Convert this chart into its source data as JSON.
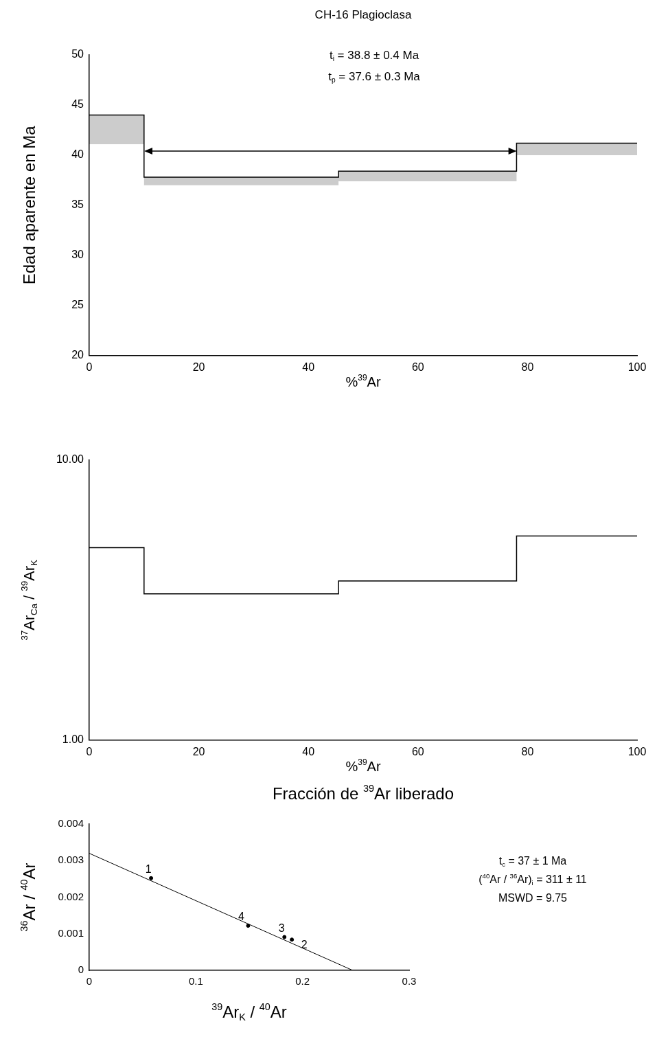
{
  "chart_data": [
    {
      "type": "step",
      "title": "CH-16 Plagioclasa",
      "xlabel": "%$^{39}$Ar",
      "ylabel": "Edad aparente en Ma",
      "xlim": [
        0,
        100
      ],
      "xticks": [
        0,
        20,
        40,
        60,
        80,
        100
      ],
      "ylim": [
        20,
        50
      ],
      "yticks": [
        20,
        25,
        30,
        35,
        40,
        45,
        50
      ],
      "grid": false,
      "legend": false,
      "annotations": [
        "t$_{i}$ = 38.8 ± 0.4 Ma",
        "t$_{p}$ = 37.6 ± 0.3 Ma"
      ],
      "series": [
        {
          "color": "#000000",
          "x": [
            0,
            10,
            45.5,
            78,
            100
          ],
          "values": [
            44.0,
            37.8,
            38.4,
            41.2,
            41.2
          ],
          "lower": [
            41.1,
            37.0,
            37.4,
            40.0,
            40.0
          ],
          "upper": [
            44.0,
            37.8,
            38.4,
            41.2,
            41.2
          ]
        }
      ]
    },
    {
      "type": "step",
      "xlabel": "%$^{39}$Ar",
      "ylabel": "$^{37}$Ar$_{Ca}$ / $^{39}$Ar$_{K}$",
      "xlim": [
        0,
        100
      ],
      "xticks": [
        0,
        20,
        40,
        60,
        80,
        100
      ],
      "ylim": [
        1,
        10
      ],
      "yticks": [
        {
          "value": 1,
          "label": "1.00"
        },
        {
          "value": 10,
          "label": "10.00"
        }
      ],
      "log": true,
      "grid": false,
      "legend": false,
      "annotations": [
        "Fracción de $^{39}$Ar liberado"
      ],
      "series": [
        {
          "color": "#000000",
          "x": [
            0,
            10,
            45.5,
            78,
            100
          ],
          "values": [
            4.87,
            3.33,
            3.7,
            5.36,
            5.36
          ]
        }
      ]
    },
    {
      "type": "scatter",
      "xlabel": "$^{39}$Ar$_{K}$ / $^{40}$Ar",
      "ylabel": "$^{36}$Ar / $^{40}$Ar",
      "xlim": [
        0,
        0.3
      ],
      "xticks": [
        0,
        0.1,
        0.2,
        0.3
      ],
      "ylim": [
        0,
        0.004
      ],
      "yticks": [
        0,
        0.001,
        0.002,
        0.003,
        0.004
      ],
      "grid": false,
      "legend": false,
      "annotations": [
        {
          "text": "1",
          "x": 0.058,
          "y": 0.00252
        },
        {
          "text": "2",
          "x": 0.19,
          "y": 0.00084
        },
        {
          "text": "3",
          "x": 0.183,
          "y": 0.00091
        },
        {
          "text": "4",
          "x": 0.149,
          "y": 0.00122
        },
        "t$_{c}$ = 37 ± 1 Ma",
        "($^{40}$Ar / $^{36}$Ar)$_{i}$ = 311 ± 11",
        "MSWD = 9.75"
      ],
      "series": [
        {
          "color": "#000000",
          "marker": "circle",
          "x": [
            0.058,
            0.19,
            0.183,
            0.149
          ],
          "values": [
            0.00252,
            0.00084,
            0.00091,
            0.00122
          ]
        },
        {
          "type": "line",
          "color": "#000000",
          "x": [
            0,
            0.247
          ],
          "values": [
            0.0032,
            0
          ]
        }
      ]
    }
  ]
}
